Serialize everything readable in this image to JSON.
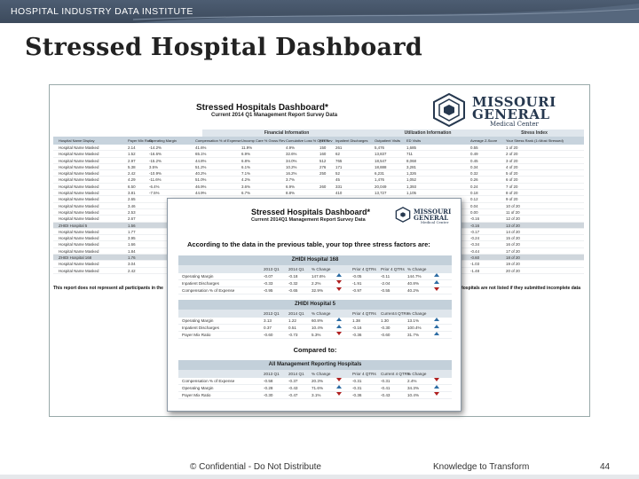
{
  "header": {
    "org": "HOSPITAL INDUSTRY DATA INSTITUTE"
  },
  "slide": {
    "title": "Stressed Hospital Dashboard"
  },
  "report": {
    "title": "Stressed Hospitals Dashboard*",
    "subtitle": "Current 2014 Q1 Management Report Survey Data",
    "logo": {
      "line1": "MISSOURI",
      "line2": "GENERAL",
      "line3": "Medical Center"
    },
    "group_headers": [
      "Financial Information",
      "Utilization Information",
      "Stress Index"
    ],
    "columns": [
      "Hospital Name Display",
      "Payer Mix Ratio",
      "Operating Margin",
      "Compensation % of Expense",
      "Uncomp Care % Gross Rev",
      "Cumulative Loss % Oper Rev",
      "FTE's",
      "Inpatient Discharges",
      "Outpatient Visits",
      "ED Visits",
      "Average Z-Score",
      "Your Stress Rank (1=Most Stressed)"
    ],
    "rows": [
      [
        "Hospital Name Masked",
        "2.14",
        "-14.2%",
        "41.6%",
        "11.9%",
        "4.9%",
        "150",
        "261",
        "5,476",
        "1,685",
        "0.55",
        "1 of 20"
      ],
      [
        "Hospital Name Masked",
        "1.52",
        "-16.6%",
        "65.1%",
        "6.9%",
        "32.6%",
        "160",
        "62",
        "13,837",
        "711",
        "0.49",
        "2 of 20"
      ],
      [
        "Hospital Name Masked",
        "2.97",
        "-15.2%",
        "44.8%",
        "6.8%",
        "34.0%",
        "512",
        "765",
        "18,547",
        "8,068",
        "0.45",
        "3 of 20"
      ],
      [
        "Hospital Name Masked",
        "5.38",
        "3.5%",
        "51.2%",
        "6.1%",
        "10.2%",
        "276",
        "171",
        "18,888",
        "3,281",
        "0.34",
        "4 of 20"
      ],
      [
        "Hospital Name Masked",
        "2.42",
        "-10.9%",
        "40.2%",
        "7.1%",
        "16.2%",
        "250",
        "52",
        "6,231",
        "1,326",
        "0.32",
        "5 of 20"
      ],
      [
        "Hospital Name Masked",
        "4.29",
        "-11.6%",
        "51.0%",
        "4.2%",
        "3.7%",
        "",
        "45",
        "1,476",
        "1,052",
        "0.26",
        "6 of 20"
      ],
      [
        "Hospital Name Masked",
        "6.50",
        "-6.4%",
        "46.9%",
        "3.6%",
        "6.9%",
        "260",
        "331",
        "20,049",
        "1,393",
        "0.24",
        "7 of 20"
      ],
      [
        "Hospital Name Masked",
        "3.81",
        "-7.5%",
        "44.9%",
        "6.7%",
        "8.8%",
        "",
        "410",
        "13,727",
        "1,105",
        "0.18",
        "8 of 20"
      ],
      [
        "Hospital Name Masked",
        "2.65",
        "",
        "",
        "",
        "",
        "",
        "",
        "",
        "",
        "0.12",
        "9 of 20"
      ],
      [
        "Hospital Name Masked",
        "3.46",
        "",
        "",
        "",
        "",
        "",
        "",
        "",
        "",
        "0.04",
        "10 of 20"
      ],
      [
        "Hospital Name Masked",
        "2.53",
        "",
        "",
        "",
        "",
        "",
        "",
        "",
        "",
        "0.00",
        "11 of 20"
      ],
      [
        "Hospital Name Masked",
        "2.67",
        "",
        "",
        "",
        "",
        "",
        "",
        "",
        "",
        "-0.16",
        "12 of 20"
      ],
      [
        "ZHIDI Hospital 5",
        "1.56",
        "",
        "",
        "",
        "",
        "",
        "",
        "",
        "",
        "-0.16",
        "13 of 20"
      ],
      [
        "Hospital Name Masked",
        "1.77",
        "",
        "",
        "",
        "",
        "",
        "",
        "",
        "",
        "-0.17",
        "14 of 20"
      ],
      [
        "Hospital Name Masked",
        "3.95",
        "",
        "",
        "",
        "",
        "",
        "",
        "",
        "",
        "-0.24",
        "15 of 20"
      ],
      [
        "Hospital Name Masked",
        "1.66",
        "",
        "",
        "",
        "",
        "",
        "",
        "",
        "",
        "-0.34",
        "16 of 20"
      ],
      [
        "Hospital Name Masked",
        "1.84",
        "",
        "",
        "",
        "",
        "",
        "",
        "",
        "",
        "-0.44",
        "17 of 20"
      ],
      [
        "ZHIDI Hospital 168",
        "1.76",
        "",
        "",
        "",
        "",
        "",
        "",
        "",
        "",
        "-0.60",
        "18 of 20"
      ],
      [
        "Hospital Name Masked",
        "3.04",
        "",
        "",
        "",
        "",
        "",
        "",
        "",
        "",
        "-1.03",
        "19 of 20"
      ],
      [
        "Hospital Name Masked",
        "2.42",
        "",
        "",
        "",
        "",
        "",
        "",
        "",
        "",
        "-1.48",
        "20 of 20"
      ]
    ],
    "footnote_left": "This report does not represent all participants in the",
    "footnote_right": "Hospitals are not listed if they submitted incomplete data"
  },
  "popup": {
    "title": "Stressed Hospitals Dashboard*",
    "subtitle": "Current 2014Q1 Management Report Survey Data",
    "logo": {
      "line1": "MISSOURI",
      "line2": "GENERAL",
      "line3": "Medical Center"
    },
    "intro": "According to the data in the previous table, your top three stress factors are:",
    "compared_to": "Compared to:",
    "sections": [
      {
        "title": "ZHIDI Hospital 168",
        "cols": [
          "2013 Q1",
          "2014 Q1",
          "% Change",
          "Prior 4 QTRs",
          "Prior 4 QTRs",
          "% Change"
        ],
        "rows": [
          {
            "label": "Operating Margin",
            "v": [
              "-0.07",
              "-0.18",
              "147.6%",
              "-0.05",
              "-0.11",
              "144.7%"
            ],
            "a1": "up",
            "a2": "up"
          },
          {
            "label": "Inpatient Discharges",
            "v": [
              "-0.33",
              "-0.32",
              "2.2%",
              "-1.91",
              "-2.04",
              "40.8%"
            ],
            "a1": "down",
            "a2": "up"
          },
          {
            "label": "Compensation % of Expense",
            "v": [
              "-0.95",
              "-0.65",
              "32.9%",
              "-0.97",
              "-0.55",
              "40.2%"
            ],
            "a1": "down",
            "a2": "down"
          }
        ]
      },
      {
        "title": "ZHIDI Hospital 5",
        "cols": [
          "2013 Q1",
          "2014 Q1",
          "% Change",
          "Prior 4 QTRs",
          "Current4 QTRs",
          "% Change"
        ],
        "rows": [
          {
            "label": "Operating Margin",
            "v": [
              "3.13",
              "1.22",
              "60.8%",
              "1.38",
              "1.30",
              "13.1%"
            ],
            "a1": "up",
            "a2": "up"
          },
          {
            "label": "Inpatient Discharges",
            "v": [
              "0.37",
              "0.51",
              "10.4%",
              "-0.16",
              "-0.30",
              "100.4%"
            ],
            "a1": "up",
            "a2": "up"
          },
          {
            "label": "Payer Mix Ratio",
            "v": [
              "-0.60",
              "-0.73",
              "5.3%",
              "-0.36",
              "-0.60",
              "31.7%"
            ],
            "a1": "down",
            "a2": "up"
          }
        ]
      },
      {
        "title": "All Management Reporting Hospitals",
        "cols": [
          "2013 Q1",
          "2014 Q1",
          "% Change",
          "Prior 4 QTRs",
          "Current 4 QTRs",
          "% Change"
        ],
        "rows": [
          {
            "label": "Compensation % of Expense",
            "v": [
              "-0.58",
              "-0.37",
              "20.3%",
              "-0.31",
              "-0.31",
              "2.4%"
            ],
            "a1": "down",
            "a2": "down"
          },
          {
            "label": "Operating Margin",
            "v": [
              "-0.28",
              "-0.43",
              "71.6%",
              "-0.31",
              "-0.41",
              "34.3%"
            ],
            "a1": "up",
            "a2": "up"
          },
          {
            "label": "Payer Mix Ratio",
            "v": [
              "-0.30",
              "-0.47",
              "3.1%",
              "-0.36",
              "-0.43",
              "10.4%"
            ],
            "a1": "down",
            "a2": "down"
          }
        ]
      }
    ]
  },
  "footer": {
    "confidential": "© Confidential - Do Not Distribute",
    "tagline": "Knowledge to Transform",
    "page": "44"
  },
  "colors": {
    "header": "#3c4a5c",
    "table_header": "#c7d3dd",
    "logo": "#26384f",
    "arrow_up": "#2e6da4",
    "arrow_down": "#b02020"
  }
}
